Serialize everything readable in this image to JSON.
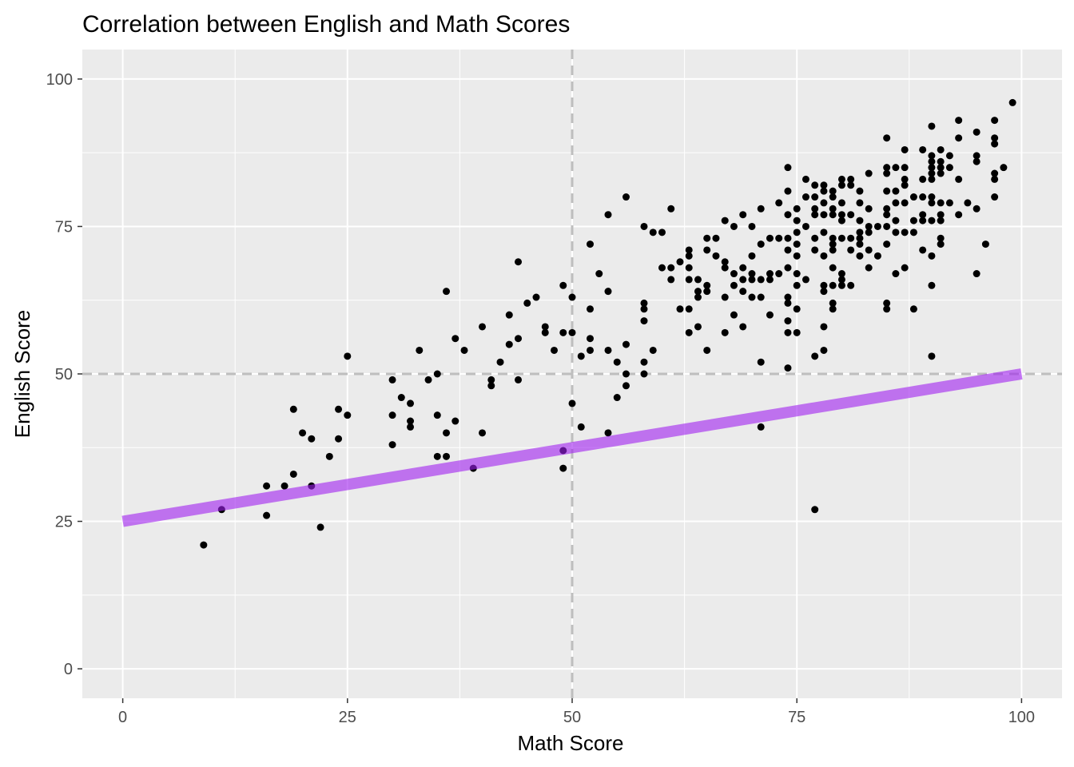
{
  "chart_data": {
    "type": "scatter",
    "title": "Correlation between English and Math Scores",
    "xlabel": "Math Score",
    "ylabel": "English Score",
    "xlim": [
      -4.5,
      104.5
    ],
    "ylim": [
      -5,
      105
    ],
    "x_ticks": [
      0,
      25,
      50,
      75,
      100
    ],
    "y_ticks": [
      0,
      25,
      50,
      75,
      100
    ],
    "x_tick_labels": [
      "0",
      "25",
      "50",
      "75",
      "100"
    ],
    "y_tick_labels": [
      "0",
      "25",
      "50",
      "75",
      "100"
    ],
    "grid": true,
    "legend": "none",
    "colors": {
      "panel": "#ebebeb",
      "grid": "#ffffff",
      "points": "#000000",
      "trend_line": "#a020f0",
      "reference_lines": "#bebebe"
    },
    "reference_lines": {
      "vline_x": 50,
      "hline_y": 50,
      "style": "dashed"
    },
    "trend_line": {
      "x": [
        0,
        100
      ],
      "y": [
        25,
        50
      ]
    },
    "points": [
      [
        9,
        21
      ],
      [
        11,
        27
      ],
      [
        16,
        31
      ],
      [
        16,
        26
      ],
      [
        18,
        31
      ],
      [
        19,
        33
      ],
      [
        19,
        44
      ],
      [
        20,
        40
      ],
      [
        21,
        39
      ],
      [
        21,
        31
      ],
      [
        22,
        24
      ],
      [
        23,
        36
      ],
      [
        24,
        44
      ],
      [
        24,
        39
      ],
      [
        25,
        53
      ],
      [
        25,
        43
      ],
      [
        30,
        49
      ],
      [
        30,
        43
      ],
      [
        30,
        38
      ],
      [
        31,
        46
      ],
      [
        32,
        45
      ],
      [
        32,
        42
      ],
      [
        32,
        41
      ],
      [
        33,
        54
      ],
      [
        34,
        49
      ],
      [
        35,
        50
      ],
      [
        35,
        43
      ],
      [
        35,
        36
      ],
      [
        36,
        64
      ],
      [
        36,
        40
      ],
      [
        36,
        36
      ],
      [
        37,
        56
      ],
      [
        37,
        42
      ],
      [
        38,
        54
      ],
      [
        39,
        34
      ],
      [
        40,
        58
      ],
      [
        40,
        40
      ],
      [
        41,
        49
      ],
      [
        41,
        48
      ],
      [
        42,
        52
      ],
      [
        43,
        60
      ],
      [
        43,
        55
      ],
      [
        44,
        69
      ],
      [
        44,
        56
      ],
      [
        44,
        49
      ],
      [
        45,
        62
      ],
      [
        46,
        63
      ],
      [
        47,
        58
      ],
      [
        47,
        57
      ],
      [
        48,
        54
      ],
      [
        49,
        65
      ],
      [
        49,
        57
      ],
      [
        49,
        37
      ],
      [
        49,
        34
      ],
      [
        50,
        63
      ],
      [
        50,
        57
      ],
      [
        50,
        45
      ],
      [
        51,
        53
      ],
      [
        51,
        41
      ],
      [
        52,
        72
      ],
      [
        52,
        61
      ],
      [
        52,
        56
      ],
      [
        52,
        54
      ],
      [
        53,
        67
      ],
      [
        54,
        77
      ],
      [
        54,
        64
      ],
      [
        54,
        54
      ],
      [
        54,
        40
      ],
      [
        55,
        52
      ],
      [
        55,
        46
      ],
      [
        56,
        80
      ],
      [
        56,
        55
      ],
      [
        56,
        50
      ],
      [
        56,
        48
      ],
      [
        58,
        75
      ],
      [
        58,
        62
      ],
      [
        58,
        61
      ],
      [
        58,
        59
      ],
      [
        58,
        52
      ],
      [
        58,
        50
      ],
      [
        59,
        74
      ],
      [
        59,
        54
      ],
      [
        60,
        74
      ],
      [
        60,
        68
      ],
      [
        61,
        78
      ],
      [
        61,
        68
      ],
      [
        61,
        66
      ],
      [
        62,
        69
      ],
      [
        62,
        61
      ],
      [
        63,
        71
      ],
      [
        63,
        70
      ],
      [
        63,
        68
      ],
      [
        63,
        66
      ],
      [
        63,
        61
      ],
      [
        63,
        57
      ],
      [
        64,
        66
      ],
      [
        64,
        64
      ],
      [
        64,
        63
      ],
      [
        64,
        58
      ],
      [
        65,
        73
      ],
      [
        65,
        71
      ],
      [
        65,
        65
      ],
      [
        65,
        64
      ],
      [
        65,
        54
      ],
      [
        66,
        73
      ],
      [
        66,
        70
      ],
      [
        67,
        76
      ],
      [
        67,
        69
      ],
      [
        67,
        68
      ],
      [
        67,
        63
      ],
      [
        67,
        57
      ],
      [
        68,
        75
      ],
      [
        68,
        67
      ],
      [
        68,
        65
      ],
      [
        68,
        60
      ],
      [
        69,
        77
      ],
      [
        69,
        68
      ],
      [
        69,
        66
      ],
      [
        69,
        64
      ],
      [
        69,
        58
      ],
      [
        70,
        75
      ],
      [
        70,
        70
      ],
      [
        70,
        67
      ],
      [
        70,
        66
      ],
      [
        70,
        63
      ],
      [
        71,
        78
      ],
      [
        71,
        72
      ],
      [
        71,
        66
      ],
      [
        71,
        63
      ],
      [
        71,
        52
      ],
      [
        71,
        41
      ],
      [
        72,
        73
      ],
      [
        72,
        67
      ],
      [
        72,
        66
      ],
      [
        72,
        60
      ],
      [
        73,
        79
      ],
      [
        73,
        73
      ],
      [
        73,
        67
      ],
      [
        74,
        85
      ],
      [
        74,
        81
      ],
      [
        74,
        77
      ],
      [
        74,
        73
      ],
      [
        74,
        71
      ],
      [
        74,
        68
      ],
      [
        74,
        63
      ],
      [
        74,
        62
      ],
      [
        74,
        59
      ],
      [
        74,
        57
      ],
      [
        74,
        51
      ],
      [
        75,
        78
      ],
      [
        75,
        76
      ],
      [
        75,
        74
      ],
      [
        75,
        72
      ],
      [
        75,
        70
      ],
      [
        75,
        67
      ],
      [
        75,
        65
      ],
      [
        75,
        61
      ],
      [
        75,
        57
      ],
      [
        76,
        83
      ],
      [
        76,
        80
      ],
      [
        76,
        75
      ],
      [
        76,
        66
      ],
      [
        77,
        82
      ],
      [
        77,
        80
      ],
      [
        77,
        78
      ],
      [
        77,
        77
      ],
      [
        77,
        73
      ],
      [
        77,
        71
      ],
      [
        77,
        53
      ],
      [
        77,
        27
      ],
      [
        78,
        82
      ],
      [
        78,
        81
      ],
      [
        78,
        79
      ],
      [
        78,
        77
      ],
      [
        78,
        74
      ],
      [
        78,
        70
      ],
      [
        78,
        65
      ],
      [
        78,
        64
      ],
      [
        78,
        58
      ],
      [
        78,
        54
      ],
      [
        79,
        81
      ],
      [
        79,
        80
      ],
      [
        79,
        78
      ],
      [
        79,
        77
      ],
      [
        79,
        73
      ],
      [
        79,
        72
      ],
      [
        79,
        71
      ],
      [
        79,
        68
      ],
      [
        79,
        65
      ],
      [
        79,
        62
      ],
      [
        79,
        61
      ],
      [
        80,
        83
      ],
      [
        80,
        82
      ],
      [
        80,
        79
      ],
      [
        80,
        77
      ],
      [
        80,
        76
      ],
      [
        80,
        73
      ],
      [
        80,
        67
      ],
      [
        80,
        66
      ],
      [
        80,
        65
      ],
      [
        81,
        83
      ],
      [
        81,
        82
      ],
      [
        81,
        77
      ],
      [
        81,
        73
      ],
      [
        81,
        71
      ],
      [
        81,
        65
      ],
      [
        82,
        81
      ],
      [
        82,
        79
      ],
      [
        82,
        76
      ],
      [
        82,
        74
      ],
      [
        82,
        73
      ],
      [
        82,
        72
      ],
      [
        82,
        70
      ],
      [
        83,
        84
      ],
      [
        83,
        78
      ],
      [
        83,
        75
      ],
      [
        83,
        74
      ],
      [
        83,
        71
      ],
      [
        83,
        68
      ],
      [
        84,
        75
      ],
      [
        84,
        70
      ],
      [
        85,
        90
      ],
      [
        85,
        85
      ],
      [
        85,
        84
      ],
      [
        85,
        81
      ],
      [
        85,
        78
      ],
      [
        85,
        77
      ],
      [
        85,
        75
      ],
      [
        85,
        72
      ],
      [
        85,
        62
      ],
      [
        85,
        61
      ],
      [
        86,
        85
      ],
      [
        86,
        81
      ],
      [
        86,
        79
      ],
      [
        86,
        76
      ],
      [
        86,
        74
      ],
      [
        86,
        67
      ],
      [
        87,
        88
      ],
      [
        87,
        85
      ],
      [
        87,
        83
      ],
      [
        87,
        82
      ],
      [
        87,
        79
      ],
      [
        87,
        74
      ],
      [
        87,
        68
      ],
      [
        88,
        80
      ],
      [
        88,
        76
      ],
      [
        88,
        74
      ],
      [
        88,
        61
      ],
      [
        89,
        88
      ],
      [
        89,
        83
      ],
      [
        89,
        80
      ],
      [
        89,
        77
      ],
      [
        89,
        76
      ],
      [
        89,
        71
      ],
      [
        90,
        92
      ],
      [
        90,
        87
      ],
      [
        90,
        86
      ],
      [
        90,
        85
      ],
      [
        90,
        84
      ],
      [
        90,
        83
      ],
      [
        90,
        80
      ],
      [
        90,
        79
      ],
      [
        90,
        76
      ],
      [
        90,
        70
      ],
      [
        90,
        65
      ],
      [
        90,
        53
      ],
      [
        91,
        88
      ],
      [
        91,
        86
      ],
      [
        91,
        85
      ],
      [
        91,
        84
      ],
      [
        91,
        79
      ],
      [
        91,
        77
      ],
      [
        91,
        76
      ],
      [
        91,
        73
      ],
      [
        91,
        72
      ],
      [
        92,
        87
      ],
      [
        92,
        85
      ],
      [
        92,
        79
      ],
      [
        93,
        93
      ],
      [
        93,
        90
      ],
      [
        93,
        83
      ],
      [
        93,
        77
      ],
      [
        94,
        79
      ],
      [
        95,
        91
      ],
      [
        95,
        87
      ],
      [
        95,
        86
      ],
      [
        95,
        78
      ],
      [
        95,
        67
      ],
      [
        96,
        72
      ],
      [
        97,
        93
      ],
      [
        97,
        90
      ],
      [
        97,
        89
      ],
      [
        97,
        84
      ],
      [
        97,
        83
      ],
      [
        97,
        80
      ],
      [
        98,
        85
      ],
      [
        99,
        96
      ]
    ]
  }
}
